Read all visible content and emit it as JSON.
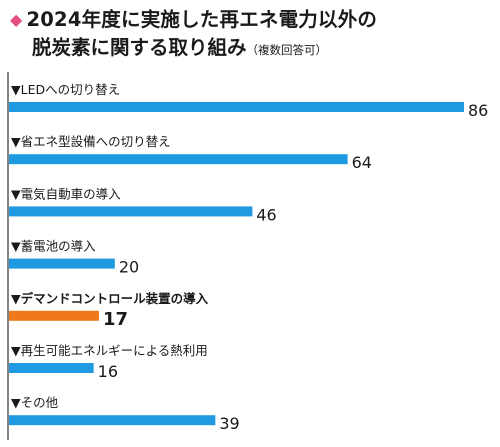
{
  "title": {
    "marker": "◆",
    "line1": "2024年度に実施した再エネ電力以外の",
    "line2": "脱炭素に関する取り組み",
    "note": "（複数回答可）"
  },
  "colors": {
    "bar": "#1f9ae0",
    "highlight": "#f07a1a",
    "marker": "#e3507f",
    "axis": "#333333"
  },
  "chart_data": {
    "type": "bar",
    "orientation": "horizontal",
    "categories": [
      "▼LEDへの切り替え",
      "▼省エネ型設備への切り替え",
      "▼電気自動車の導入",
      "▼蓄電池の導入",
      "▼デマンドコントロール装置の導入",
      "▼再生可能エネルギーによる熱利用",
      "▼その他"
    ],
    "values": [
      86,
      64,
      46,
      20,
      17,
      16,
      39
    ],
    "highlight_index": 4,
    "xlim": [
      0,
      86
    ],
    "grid": false
  }
}
